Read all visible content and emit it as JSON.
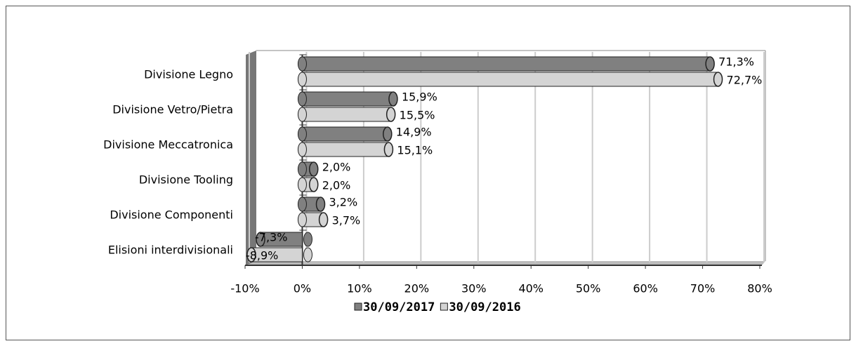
{
  "chart_data": {
    "type": "bar",
    "orientation": "horizontal",
    "categories": [
      "Divisione Legno",
      "Divisione Vetro/Pietra",
      "Divisione Meccatronica",
      "Divisione Tooling",
      "Divisione Componenti",
      "Elisioni interdivisionali"
    ],
    "series": [
      {
        "name": "30/09/2017",
        "color": "#808080",
        "values": [
          71.3,
          15.9,
          14.9,
          2.0,
          3.2,
          -7.3
        ],
        "value_labels": [
          "71,3%",
          "15,9%",
          "14,9%",
          "2,0%",
          "3,2%",
          "-7,3%"
        ]
      },
      {
        "name": "30/09/2016",
        "color": "#d4d4d4",
        "values": [
          72.7,
          15.5,
          15.1,
          2.0,
          3.7,
          -8.9
        ],
        "value_labels": [
          "72,7%",
          "15,5%",
          "15,1%",
          "2,0%",
          "3,7%",
          "-8,9%"
        ]
      }
    ],
    "xlim": [
      -10,
      80
    ],
    "xticks": [
      {
        "value": -10,
        "label": "-10%"
      },
      {
        "value": 0,
        "label": "0%"
      },
      {
        "value": 10,
        "label": "10%"
      },
      {
        "value": 20,
        "label": "20%"
      },
      {
        "value": 30,
        "label": "30%"
      },
      {
        "value": 40,
        "label": "40%"
      },
      {
        "value": 50,
        "label": "50%"
      },
      {
        "value": 60,
        "label": "60%"
      },
      {
        "value": 70,
        "label": "70%"
      },
      {
        "value": 80,
        "label": "80%"
      }
    ],
    "grid": true,
    "legend": "bottom"
  }
}
